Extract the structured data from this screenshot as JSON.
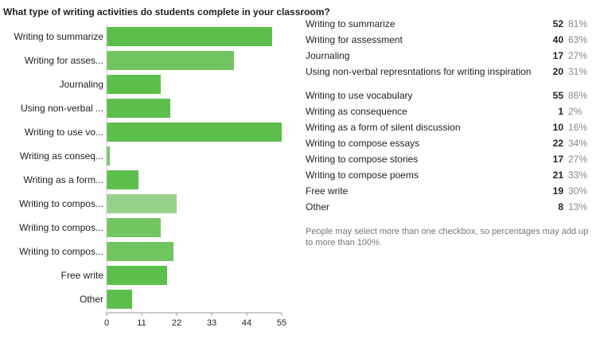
{
  "question": "What type of writing activities do students complete in your classroom?",
  "colors": {
    "bar": "#5cbf4b",
    "bar_light": "#73c561",
    "bar_pale": "#98d28a",
    "axis": "#999999",
    "text": "#333333"
  },
  "chart_data": {
    "type": "bar",
    "orientation": "horizontal",
    "categories": [
      "Writing to summarize",
      "Writing for asses...",
      "Journaling",
      "Using non-verbal ...",
      "Writing to use vo...",
      "Writing as conseq...",
      "Writing as a form...",
      "Writing to compos...",
      "Writing to compos...",
      "Writing to compos...",
      "Free write",
      "Other"
    ],
    "values": [
      52,
      40,
      17,
      20,
      55,
      1,
      10,
      22,
      17,
      21,
      19,
      8
    ],
    "xticks": [
      0,
      11,
      22,
      33,
      44,
      55
    ],
    "xlim": [
      0,
      55
    ],
    "grid": false
  },
  "results": [
    {
      "label": "Writing to summarize",
      "count": "52",
      "percent": "81%"
    },
    {
      "label": "Writing for assessment",
      "count": "40",
      "percent": "63%"
    },
    {
      "label": "Journaling",
      "count": "17",
      "percent": "27%"
    },
    {
      "label": "Using non-verbal represntations for writing inspiration",
      "count": "20",
      "percent": "31%"
    },
    {
      "label": "Writing to use vocabulary",
      "count": "55",
      "percent": "86%"
    },
    {
      "label": "Writing as consequence",
      "count": "1",
      "percent": "2%"
    },
    {
      "label": "Writing as a form of silent discussion",
      "count": "10",
      "percent": "16%"
    },
    {
      "label": "Writing to compose essays",
      "count": "22",
      "percent": "34%"
    },
    {
      "label": "Writing to compose stories",
      "count": "17",
      "percent": "27%"
    },
    {
      "label": "Writing to compose poems",
      "count": "21",
      "percent": "33%"
    },
    {
      "label": "Free write",
      "count": "19",
      "percent": "30%"
    },
    {
      "label": "Other",
      "count": "8",
      "percent": "13%"
    }
  ],
  "note": "People may select more than one checkbox, so percentages may add up to more than 100%."
}
